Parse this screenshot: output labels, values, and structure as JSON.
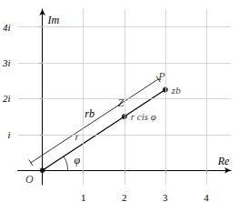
{
  "chart_data": {
    "type": "scatter",
    "xlabel": "Re",
    "ylabel": "Im",
    "xlim": [
      -0.6,
      4.6
    ],
    "ylim": [
      -0.4,
      4.5
    ],
    "xticks": [
      1,
      2,
      3,
      4
    ],
    "yticks": [
      {
        "value": 1,
        "label": "i"
      },
      {
        "value": 2,
        "label": "2i"
      },
      {
        "value": 3,
        "label": "3i"
      },
      {
        "value": 4,
        "label": "4i"
      }
    ],
    "grid": true,
    "color": "#000000",
    "points": [
      {
        "name": "O",
        "x": 0,
        "y": 0
      },
      {
        "name": "Z",
        "x": 2,
        "y": 1.5,
        "label": "r cis φ"
      },
      {
        "name": "P",
        "x": 3,
        "y": 2.25,
        "label": "zb"
      }
    ],
    "segments": [
      {
        "from": "O",
        "to": "P"
      }
    ],
    "dimension": {
      "from": "O",
      "to": "P",
      "label": "rb"
    },
    "angle": {
      "at": "O",
      "to": "P",
      "label": "φ"
    },
    "annotations": [
      {
        "text": "r",
        "x": 0.85,
        "y": 0.95
      }
    ]
  }
}
